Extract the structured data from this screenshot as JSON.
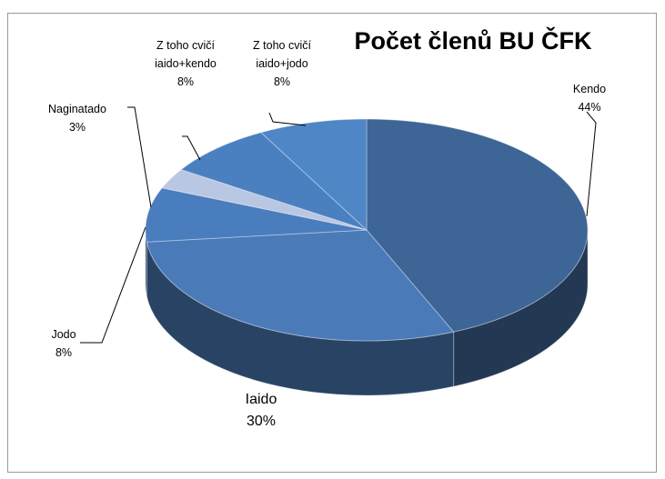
{
  "chart_data": {
    "type": "pie3d",
    "title": "Počet členů BU ČFK",
    "categories": [
      "Kendo",
      "Iaido",
      "Jodo",
      "Naginatado",
      "Z toho cvičí iaido+kendo",
      "Z toho cvičí iaido+jodo"
    ],
    "values": [
      44,
      30,
      8,
      3,
      8,
      8
    ],
    "value_labels": [
      "44%",
      "30%",
      "8%",
      "3%",
      "8%",
      "8%"
    ],
    "colors": [
      "#3d6596",
      "#4a7ab8",
      "#4a7dbd",
      "#b9c7e2",
      "#4b80c0",
      "#4f86c6"
    ]
  }
}
